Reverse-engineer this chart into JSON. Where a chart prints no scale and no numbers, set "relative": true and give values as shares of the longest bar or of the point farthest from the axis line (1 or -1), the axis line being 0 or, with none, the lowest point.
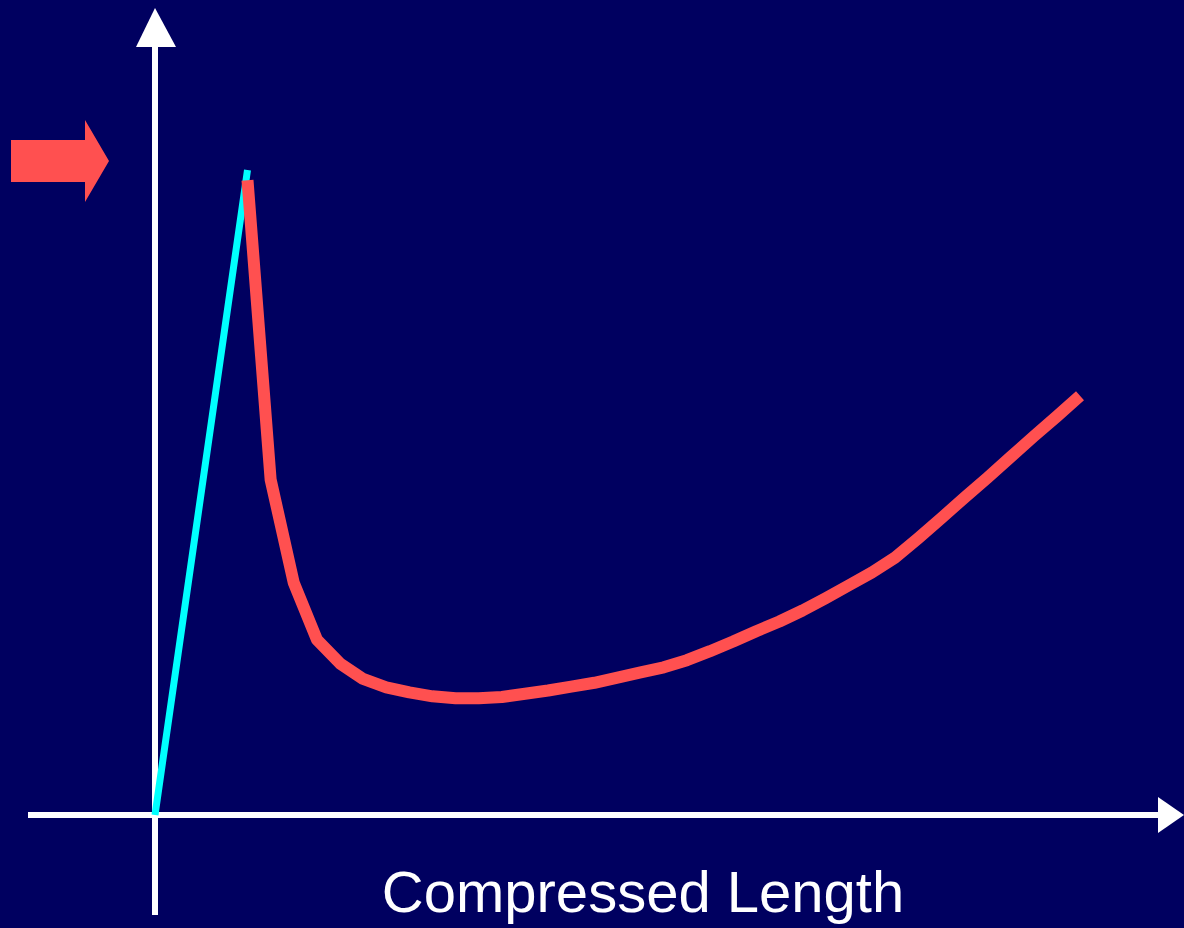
{
  "chart_data": {
    "type": "line",
    "xlabel": "Compressed Length",
    "relative": true,
    "categories": [
      null,
      null,
      null,
      null,
      null,
      null,
      null,
      null,
      null,
      null,
      null,
      null,
      null,
      null,
      null,
      null,
      null,
      null,
      null,
      null,
      null,
      null,
      null,
      null,
      null,
      null,
      null,
      null,
      null,
      null,
      null,
      null,
      null,
      null,
      null,
      null,
      null,
      null,
      null,
      null,
      null
    ],
    "series": [
      {
        "color": "#00ffff",
        "values": [
          0,
          0.25,
          0.5,
          0.75,
          1.0,
          null,
          null,
          null,
          null,
          null,
          null,
          null,
          null,
          null,
          null,
          null,
          null,
          null,
          null,
          null,
          null,
          null,
          null,
          null,
          null,
          null,
          null,
          null,
          null,
          null,
          null,
          null,
          null,
          null,
          null,
          null,
          null,
          null,
          null,
          null,
          null
        ]
      },
      {
        "color": "#ff5050",
        "values": [
          null,
          null,
          null,
          null,
          0.984,
          0.52,
          0.36,
          0.272,
          0.235,
          0.211,
          0.198,
          0.19,
          0.184,
          0.181,
          0.181,
          0.183,
          0.188,
          0.193,
          0.199,
          0.205,
          0.213,
          0.221,
          0.229,
          0.24,
          0.254,
          0.269,
          0.285,
          0.3,
          0.317,
          0.336,
          0.356,
          0.376,
          0.399,
          0.429,
          0.46,
          0.492,
          0.523,
          0.555,
          0.587,
          0.618,
          0.65
        ]
      }
    ]
  }
}
